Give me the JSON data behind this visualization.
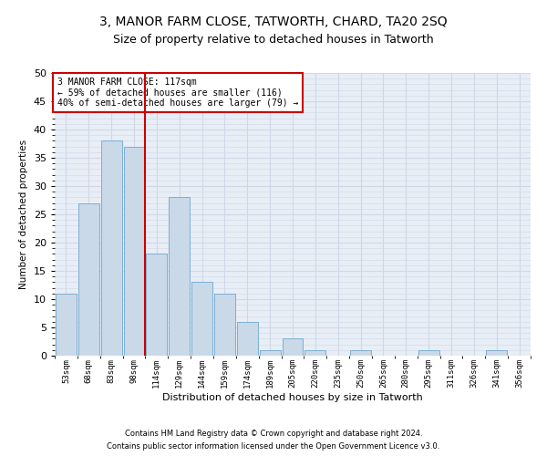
{
  "title1": "3, MANOR FARM CLOSE, TATWORTH, CHARD, TA20 2SQ",
  "title2": "Size of property relative to detached houses in Tatworth",
  "xlabel": "Distribution of detached houses by size in Tatworth",
  "ylabel": "Number of detached properties",
  "categories": [
    "53sqm",
    "68sqm",
    "83sqm",
    "98sqm",
    "114sqm",
    "129sqm",
    "144sqm",
    "159sqm",
    "174sqm",
    "189sqm",
    "205sqm",
    "220sqm",
    "235sqm",
    "250sqm",
    "265sqm",
    "280sqm",
    "295sqm",
    "311sqm",
    "326sqm",
    "341sqm",
    "356sqm"
  ],
  "values": [
    11,
    27,
    38,
    37,
    18,
    28,
    13,
    11,
    6,
    1,
    3,
    1,
    0,
    1,
    0,
    0,
    1,
    0,
    0,
    1,
    0
  ],
  "bar_color": "#c9d9e8",
  "bar_edge_color": "#7bafd4",
  "vline_index": 4,
  "vline_color": "#cc0000",
  "annotation_text": "3 MANOR FARM CLOSE: 117sqm\n← 59% of detached houses are smaller (116)\n40% of semi-detached houses are larger (79) →",
  "annotation_box_color": "#ffffff",
  "annotation_box_edge": "#cc0000",
  "footer1": "Contains HM Land Registry data © Crown copyright and database right 2024.",
  "footer2": "Contains public sector information licensed under the Open Government Licence v3.0.",
  "ylim": [
    0,
    50
  ],
  "yticks": [
    0,
    5,
    10,
    15,
    20,
    25,
    30,
    35,
    40,
    45,
    50
  ],
  "grid_color": "#d0d8e8",
  "bg_color": "#e8eef5",
  "title1_fontsize": 10,
  "title2_fontsize": 9,
  "xlabel_fontsize": 8,
  "ylabel_fontsize": 7.5,
  "bar_width": 0.92
}
